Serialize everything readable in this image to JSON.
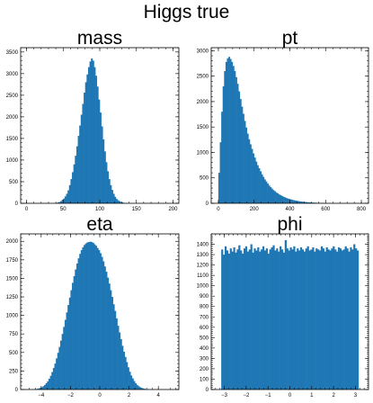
{
  "figure": {
    "title": "Higgs true"
  },
  "colors": {
    "bar": "#1f77b4",
    "axes": "#000000",
    "background": "#ffffff"
  },
  "chart_data": [
    {
      "type": "bar",
      "title": "mass",
      "xlabel": "",
      "ylabel": "",
      "xlim": [
        -8,
        208
      ],
      "ylim": [
        0,
        3600
      ],
      "xticks": [
        0,
        50,
        100,
        150,
        200
      ],
      "yticks": [
        0,
        500,
        1000,
        1500,
        2000,
        2500,
        3000,
        3500
      ],
      "bins": {
        "start": 38,
        "width": 2
      },
      "values": [
        0,
        10,
        20,
        30,
        50,
        80,
        110,
        160,
        220,
        300,
        420,
        560,
        720,
        900,
        1100,
        1320,
        1560,
        1800,
        2050,
        2300,
        2560,
        2800,
        2980,
        3150,
        3280,
        3350,
        3300,
        3150,
        2950,
        2700,
        2400,
        2100,
        1780,
        1480,
        1200,
        950,
        740,
        560,
        420,
        310,
        220,
        150,
        100,
        70,
        50,
        30,
        20,
        10,
        5
      ]
    },
    {
      "type": "bar",
      "title": "pt",
      "xlabel": "",
      "ylabel": "",
      "xlim": [
        -40,
        840
      ],
      "ylim": [
        0,
        3060
      ],
      "xticks": [
        0,
        200,
        400,
        600,
        800
      ],
      "yticks": [
        0,
        500,
        1000,
        1500,
        2000,
        2500,
        3000
      ],
      "bins": {
        "start": 0,
        "width": 8
      },
      "values": [
        600,
        1200,
        1800,
        2300,
        2600,
        2780,
        2850,
        2880,
        2840,
        2780,
        2700,
        2600,
        2480,
        2350,
        2200,
        2050,
        1900,
        1760,
        1620,
        1490,
        1370,
        1260,
        1160,
        1070,
        980,
        900,
        820,
        750,
        690,
        630,
        570,
        520,
        470,
        430,
        390,
        350,
        320,
        290,
        260,
        240,
        215,
        195,
        175,
        160,
        145,
        130,
        118,
        105,
        95,
        86,
        78,
        70,
        63,
        57,
        51,
        46,
        41,
        37,
        33,
        30,
        27,
        24,
        21,
        19,
        17,
        15,
        13,
        12,
        10,
        9,
        8,
        7,
        6,
        5,
        4,
        3,
        2,
        1,
        1,
        0
      ]
    },
    {
      "type": "bar",
      "title": "eta",
      "xlabel": "",
      "ylabel": "",
      "xlim": [
        -5.4,
        5.4
      ],
      "ylim": [
        0,
        2100
      ],
      "xticks": [
        -4,
        -2,
        0,
        2,
        4
      ],
      "yticks": [
        0,
        250,
        500,
        750,
        1000,
        1250,
        1500,
        1750,
        2000
      ],
      "bins": {
        "start": -4.6,
        "width": 0.1
      },
      "values": [
        2,
        4,
        6,
        10,
        15,
        22,
        32,
        45,
        62,
        85,
        110,
        145,
        185,
        235,
        290,
        350,
        420,
        495,
        575,
        660,
        750,
        845,
        940,
        1040,
        1140,
        1240,
        1340,
        1440,
        1530,
        1620,
        1700,
        1770,
        1830,
        1880,
        1920,
        1950,
        1970,
        1985,
        1990,
        1995,
        1990,
        1980,
        1960,
        1940,
        1910,
        1880,
        1840,
        1790,
        1730,
        1660,
        1590,
        1510,
        1430,
        1340,
        1250,
        1150,
        1060,
        960,
        860,
        770,
        680,
        590,
        510,
        440,
        370,
        300,
        240,
        190,
        150,
        115,
        85,
        62,
        45,
        32,
        22,
        15,
        10,
        6,
        4,
        2
      ]
    },
    {
      "type": "bar",
      "title": "phi",
      "xlabel": "",
      "ylabel": "",
      "xlim": [
        -3.6,
        3.6
      ],
      "ylim": [
        0,
        1500
      ],
      "xticks": [
        -3,
        -2,
        -1,
        0,
        1,
        2,
        3
      ],
      "yticks": [
        0,
        100,
        200,
        300,
        400,
        500,
        600,
        700,
        800,
        900,
        1000,
        1100,
        1200,
        1300,
        1400
      ],
      "bins": {
        "start": -3.14159,
        "width": 0.0785398
      },
      "values": [
        1350,
        1300,
        1380,
        1340,
        1310,
        1360,
        1330,
        1370,
        1320,
        1350,
        1390,
        1340,
        1310,
        1360,
        1380,
        1330,
        1350,
        1400,
        1320,
        1360,
        1340,
        1370,
        1330,
        1350,
        1380,
        1340,
        1360,
        1310,
        1350,
        1370,
        1390,
        1340,
        1360,
        1330,
        1380,
        1350,
        1320,
        1440,
        1360,
        1340,
        1370,
        1350,
        1380,
        1330,
        1360,
        1340,
        1370,
        1350,
        1330,
        1360,
        1380,
        1340,
        1350,
        1370,
        1330,
        1360,
        1350,
        1340,
        1380,
        1360,
        1330,
        1370,
        1350,
        1340,
        1360,
        1380,
        1350,
        1330,
        1370,
        1360,
        1340,
        1350,
        1380,
        1360,
        1330,
        1370,
        1350,
        1400,
        1360,
        1340
      ]
    }
  ]
}
